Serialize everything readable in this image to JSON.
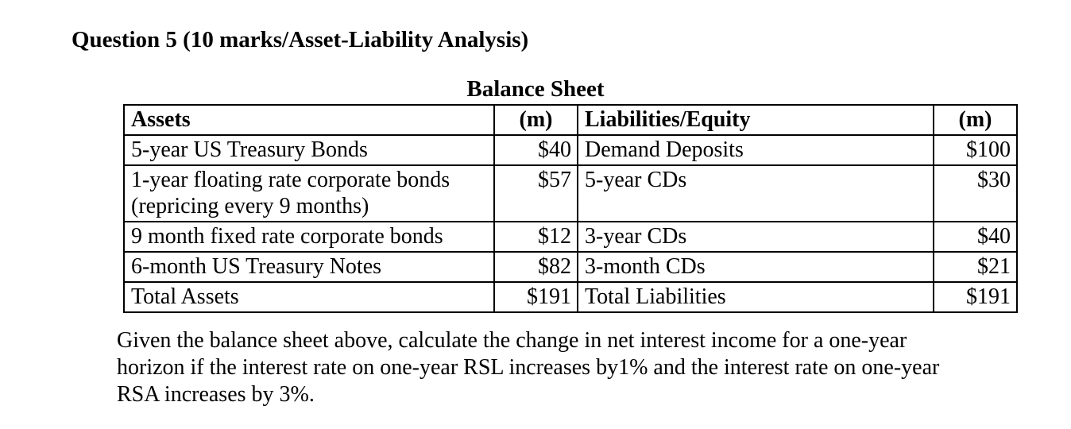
{
  "page": {
    "title": "Question 5 (10 marks/Asset-Liability Analysis)"
  },
  "balance_sheet": {
    "title": "Balance Sheet",
    "headers": {
      "assets": "Assets",
      "m_left": "(m)",
      "liabilities": "Liabilities/Equity",
      "m_right": "(m)"
    },
    "rows": [
      {
        "asset": "5-year US Treasury Bonds",
        "asset_m": "$40",
        "liability": "Demand Deposits",
        "liability_m": "$100"
      },
      {
        "asset_line1": "1-year floating rate corporate bonds",
        "asset_line2": "(repricing every 9 months)",
        "asset_m": "$57",
        "liability": "5-year CDs",
        "liability_m": "$30"
      },
      {
        "asset": "9 month fixed rate corporate bonds",
        "asset_m": "$12",
        "liability": "3-year CDs",
        "liability_m": "$40"
      },
      {
        "asset": "6-month US Treasury Notes",
        "asset_m": "$82",
        "liability": "3-month CDs",
        "liability_m": "$21"
      },
      {
        "asset": "Total Assets",
        "asset_m": "$191",
        "liability": "Total Liabilities",
        "liability_m": "$191"
      }
    ]
  },
  "question": {
    "lines": [
      "Given the balance sheet above, calculate the change in net interest income for a one-year",
      "horizon if the interest rate on one-year RSL increases by1% and the interest rate on one-year",
      "RSA increases by 3%."
    ]
  }
}
